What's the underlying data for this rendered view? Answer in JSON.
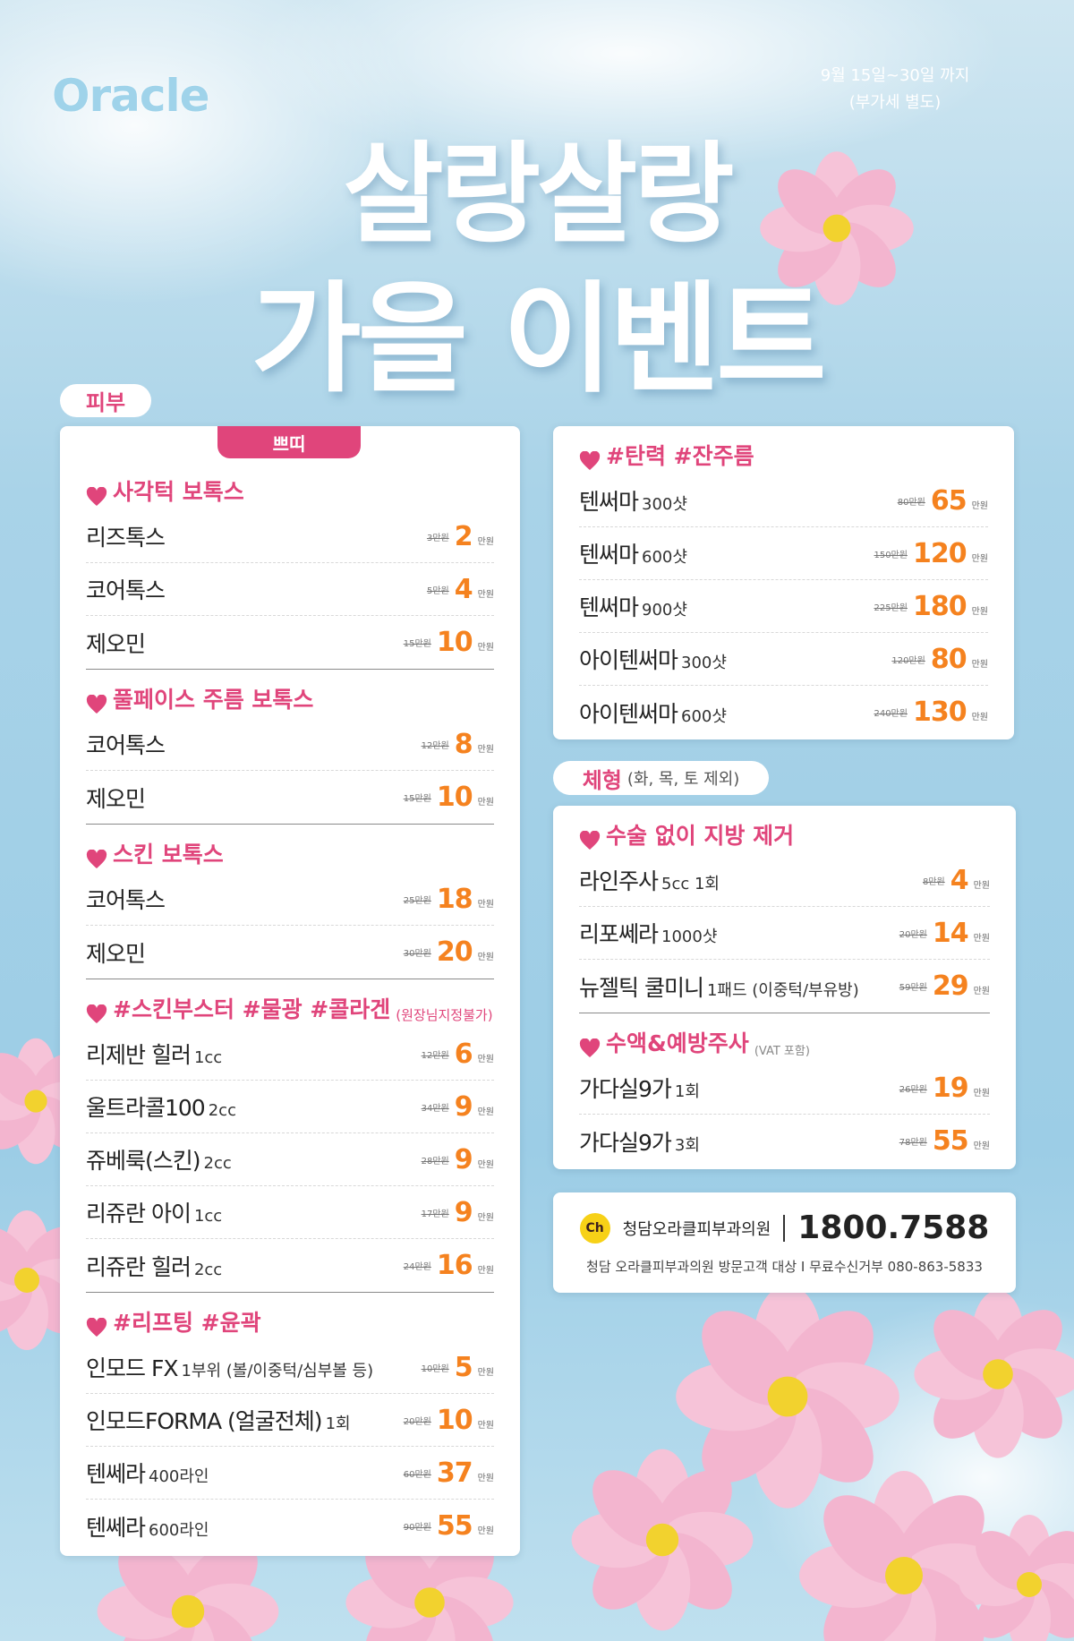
{
  "logo": "Oracle",
  "period": "9월 15일~30일 까지",
  "vat": "(부가세 별도)",
  "title_line1": "살랑살랑",
  "title_line2": "가을 이벤트",
  "unit": "만원",
  "left": {
    "tab": "피부",
    "badge": "쁘띠",
    "groups": [
      {
        "heading": "사각턱 보톡스",
        "items": [
          {
            "name": "리즈톡스",
            "was": "3만원",
            "price": "2"
          },
          {
            "name": "코어톡스",
            "was": "5만원",
            "price": "4"
          },
          {
            "name": "제오민",
            "was": "15만원",
            "price": "10"
          }
        ]
      },
      {
        "heading": "풀페이스 주름 보톡스",
        "items": [
          {
            "name": "코어톡스",
            "was": "12만원",
            "price": "8"
          },
          {
            "name": "제오민",
            "was": "15만원",
            "price": "10"
          }
        ]
      },
      {
        "heading": "스킨 보톡스",
        "items": [
          {
            "name": "코어톡스",
            "was": "25만원",
            "price": "18"
          },
          {
            "name": "제오민",
            "was": "30만원",
            "price": "20"
          }
        ]
      },
      {
        "heading": "#스킨부스터 #물광 #콜라겐",
        "note": "(원장님지정불가)",
        "items": [
          {
            "name": "리제반 힐러",
            "detail": "1cc",
            "was": "12만원",
            "price": "6"
          },
          {
            "name": "울트라콜100",
            "detail": "2cc",
            "was": "34만원",
            "price": "9"
          },
          {
            "name": "쥬베룩(스킨)",
            "detail": "2cc",
            "was": "28만원",
            "price": "9"
          },
          {
            "name": "리쥬란 아이",
            "detail": "1cc",
            "was": "17만원",
            "price": "9"
          },
          {
            "name": "리쥬란 힐러",
            "detail": "2cc",
            "was": "24만원",
            "price": "16"
          }
        ]
      },
      {
        "heading": "#리프팅 #윤곽",
        "items": [
          {
            "name": "인모드 FX",
            "detail": "1부위 (볼/이중턱/심부볼 등)",
            "was": "10만원",
            "price": "5"
          },
          {
            "name": "인모드FORMA (얼굴전체)",
            "detail": "1회",
            "was": "20만원",
            "price": "10"
          },
          {
            "name": "텐쎄라",
            "detail": "400라인",
            "was": "60만원",
            "price": "37"
          },
          {
            "name": "텐쎄라",
            "detail": "600라인",
            "was": "90만원",
            "price": "55"
          }
        ]
      }
    ]
  },
  "right_top": {
    "groups": [
      {
        "heading": "#탄력 #잔주름",
        "items": [
          {
            "name": "텐써마",
            "detail": "300샷",
            "was": "80만원",
            "price": "65"
          },
          {
            "name": "텐써마",
            "detail": "600샷",
            "was": "150만원",
            "price": "120"
          },
          {
            "name": "텐써마",
            "detail": "900샷",
            "was": "225만원",
            "price": "180"
          },
          {
            "name": "아이텐써마",
            "detail": "300샷",
            "was": "120만원",
            "price": "80"
          },
          {
            "name": "아이텐써마",
            "detail": "600샷",
            "was": "240만원",
            "price": "130"
          }
        ]
      }
    ]
  },
  "right_bottom": {
    "tab": "체형",
    "tab_note": "(화, 목, 토 제외)",
    "groups": [
      {
        "heading": "수술 없이 지방 제거",
        "items": [
          {
            "name": "라인주사",
            "detail": "5cc 1회",
            "was": "8만원",
            "price": "4"
          },
          {
            "name": "리포쎄라",
            "detail": "1000샷",
            "was": "20만원",
            "price": "14"
          },
          {
            "name": "뉴젤틱 쿨미니",
            "detail": "1패드 (이중턱/부유방)",
            "was": "59만원",
            "price": "29"
          }
        ]
      },
      {
        "heading": "수액&예방주사",
        "vat_note": "(VAT 포함)",
        "items": [
          {
            "name": "가다실9가",
            "detail": "1회",
            "was": "26만원",
            "price": "19"
          },
          {
            "name": "가다실9가",
            "detail": "3회",
            "was": "78만원",
            "price": "55"
          }
        ]
      }
    ]
  },
  "contact": {
    "icon": "Ch",
    "clinic": "청담오라클피부과의원",
    "phone": "1800.7588",
    "footer": "청담 오라클피부과의원 방문고객 대상 I 무료수신거부 080-863-5833"
  }
}
